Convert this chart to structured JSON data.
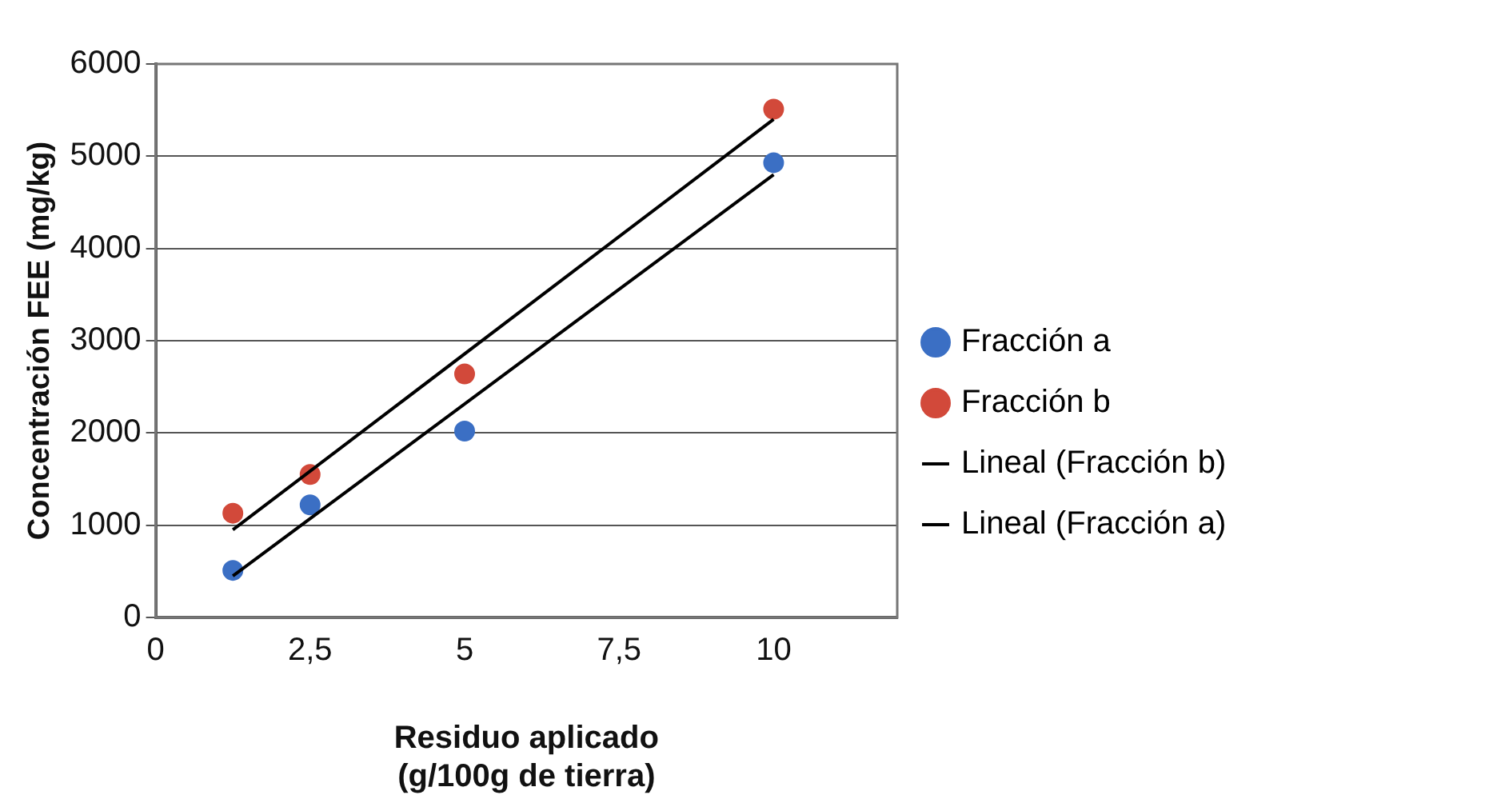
{
  "chart_data": {
    "type": "scatter",
    "xlabel": "Residuo aplicado\n(g/100g de tierra)",
    "ylabel": "Concentración FEE (mg/kg)",
    "x": [
      1.25,
      2.5,
      5,
      10
    ],
    "series": [
      {
        "name": "Fracción a",
        "color": "#3b6fc4",
        "values": [
          510,
          1220,
          2020,
          4930
        ]
      },
      {
        "name": "Fracción b",
        "color": "#d2493a",
        "values": [
          1130,
          1550,
          2640,
          5510
        ]
      },
      {
        "name": "Lineal (Fracción b)",
        "type": "line",
        "marker": "none",
        "color": "#000000",
        "values": [
          950,
          null,
          null,
          5400
        ]
      },
      {
        "name": "Lineal (Fracción a)",
        "type": "line",
        "marker": "none",
        "color": "#000000",
        "values": [
          450,
          null,
          null,
          4800
        ]
      }
    ],
    "xlim": [
      0,
      12
    ],
    "xticks": [
      0,
      {
        "value": 2.5,
        "label": "2,5"
      },
      5,
      {
        "value": 7.5,
        "label": "7,5"
      },
      10
    ],
    "ylim": [
      0,
      6000
    ],
    "yticks": [
      0,
      1000,
      2000,
      3000,
      4000,
      5000,
      6000
    ],
    "grid": "y",
    "legend": "right",
    "marker": "circle",
    "line_style": "solid"
  }
}
